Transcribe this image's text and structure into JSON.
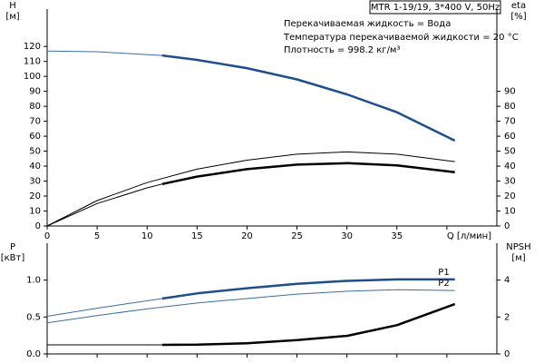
{
  "chart_data": [
    {
      "type": "line",
      "title": "MTR 1-19/19, 3*400 V, 50Hz",
      "annotations": [
        "Перекачиваемая жидкость = Вода",
        "Температура перекачиваемой жидкости = 20 °C",
        "Плотность = 998.2 кг/м³"
      ],
      "ylabel": [
        "H",
        "[м]"
      ],
      "y2label": [
        "eta",
        "[%]"
      ],
      "xlim": [
        0,
        45
      ],
      "xticks": [
        0,
        5,
        10,
        15,
        20,
        25,
        30,
        35,
        {
          "value": 40,
          "label": "Q [л/мин]"
        }
      ],
      "ylim": [
        0,
        145
      ],
      "yticks": [
        0,
        10,
        20,
        30,
        40,
        50,
        60,
        70,
        80,
        90,
        100,
        110,
        120
      ],
      "y2lim": [
        0,
        145
      ],
      "y2ticks": [
        0,
        10,
        20,
        30,
        40,
        50,
        60,
        70,
        80,
        90
      ],
      "series": [
        {
          "color": "#3a6ea5",
          "width": 1,
          "x": [
            0,
            5,
            11.5
          ],
          "values": [
            117,
            116.5,
            114
          ]
        },
        {
          "color": "#1f4e8c",
          "width": 2.5,
          "x": [
            11.5,
            15,
            20,
            25,
            30,
            35,
            40.8
          ],
          "values": [
            114,
            111,
            105.5,
            98,
            88,
            76,
            57
          ]
        },
        {
          "color": "#000000",
          "width": 1,
          "axis": "y2",
          "x": [
            0,
            5,
            10,
            15,
            20,
            25,
            30,
            35,
            40.8
          ],
          "values": [
            0,
            17,
            29,
            38,
            44,
            48,
            49.5,
            48,
            43
          ]
        },
        {
          "color": "#000000",
          "width": 1,
          "axis": "y2",
          "x": [
            0,
            5,
            10,
            11.5
          ],
          "values": [
            0,
            15,
            25.5,
            28
          ]
        },
        {
          "color": "#000000",
          "width": 2.5,
          "axis": "y2",
          "x": [
            11.5,
            15,
            20,
            25,
            30,
            35,
            40.8
          ],
          "values": [
            28,
            33,
            38,
            41,
            42,
            40.5,
            36
          ]
        }
      ]
    },
    {
      "type": "line",
      "ylabel": [
        "P",
        "[кВт]"
      ],
      "y2label": [
        "NPSH",
        "[м]"
      ],
      "xlim": [
        0,
        45
      ],
      "xticks": [
        0,
        5,
        10,
        15,
        20,
        25,
        30,
        35,
        40
      ],
      "ylim": [
        0,
        1.5
      ],
      "yticks": [
        {
          "value": 0,
          "label": "0.0"
        },
        0.5,
        {
          "value": 1,
          "label": "1.0"
        }
      ],
      "y2lim": [
        0,
        6
      ],
      "y2ticks": [
        0,
        2,
        4
      ],
      "series": [
        {
          "color": "#3a6ea5",
          "width": 1,
          "x": [
            0,
            5,
            11.5
          ],
          "values": [
            0.51,
            0.62,
            0.75
          ]
        },
        {
          "name": "P1",
          "color": "#1f4e8c",
          "width": 2.5,
          "x": [
            11.5,
            15,
            20,
            25,
            30,
            35,
            40.8
          ],
          "values": [
            0.75,
            0.82,
            0.89,
            0.95,
            0.99,
            1.01,
            1.01
          ]
        },
        {
          "name": "P2",
          "color": "#3a6ea5",
          "width": 1,
          "x": [
            0,
            5,
            10,
            15,
            20,
            25,
            30,
            35,
            40.8
          ],
          "values": [
            0.42,
            0.52,
            0.61,
            0.69,
            0.75,
            0.81,
            0.85,
            0.87,
            0.86
          ]
        },
        {
          "color": "#000000",
          "width": 1,
          "axis": "y2",
          "x": [
            0,
            11.5
          ],
          "values": [
            0.49,
            0.49
          ]
        },
        {
          "color": "#000000",
          "width": 2.5,
          "axis": "y2",
          "x": [
            11.5,
            15,
            20,
            25,
            30,
            35,
            40.8
          ],
          "values": [
            0.49,
            0.5,
            0.58,
            0.75,
            0.98,
            1.56,
            2.7
          ]
        }
      ]
    }
  ]
}
